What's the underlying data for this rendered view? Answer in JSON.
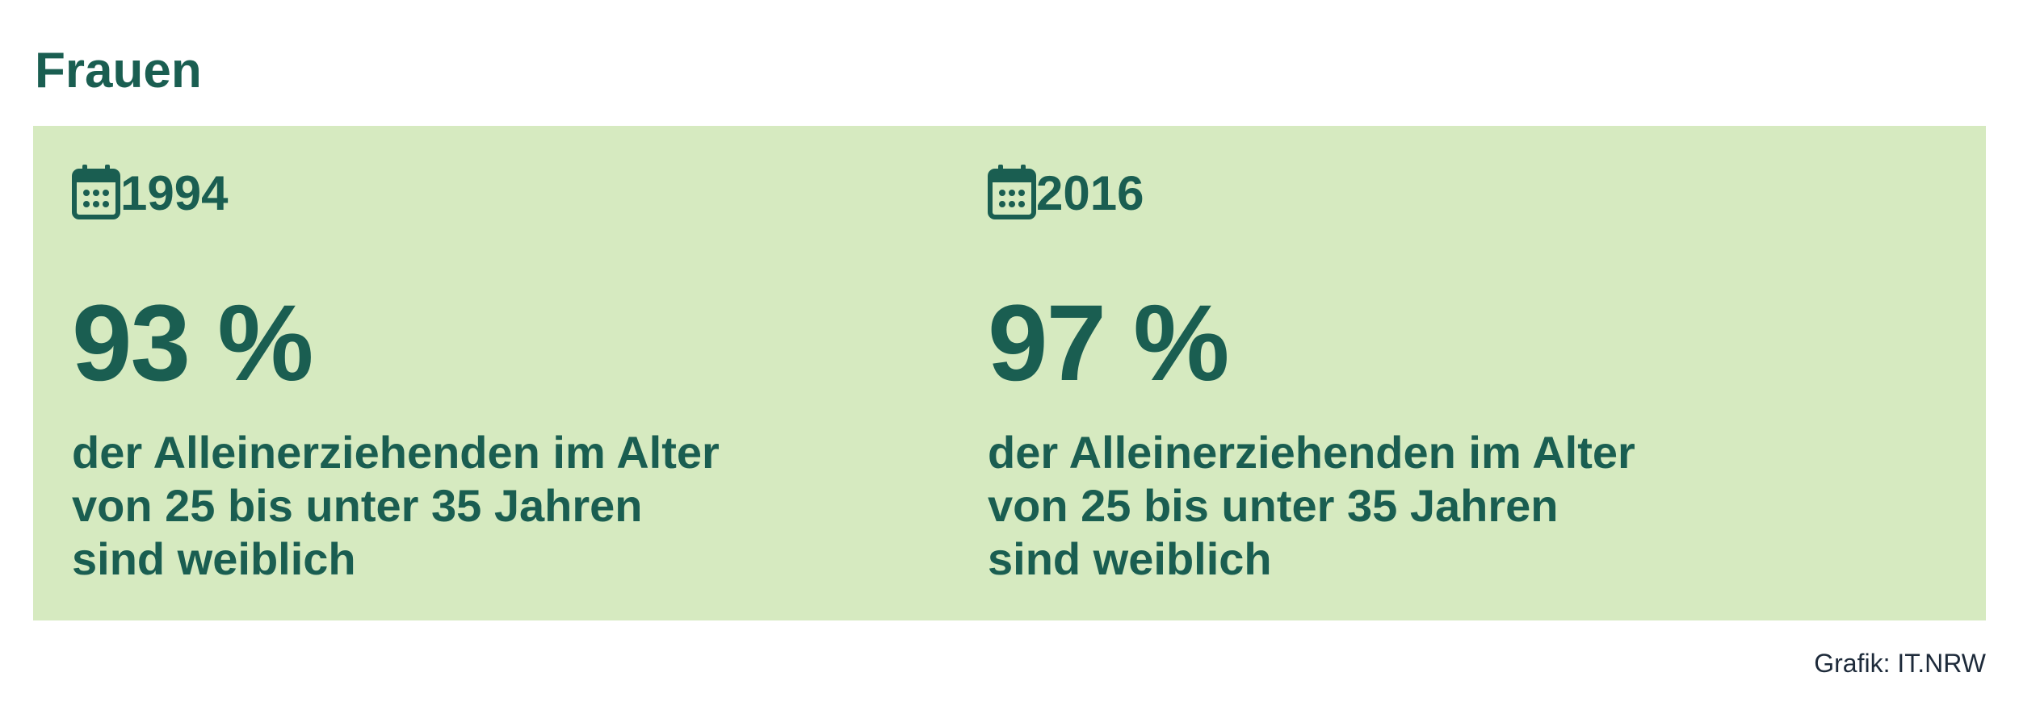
{
  "header": {
    "title": "Frauen"
  },
  "panels": [
    {
      "year": "1994",
      "value": "93 %",
      "description": [
        "der Alleinerziehenden im Alter",
        "von 25 bis unter 35 Jahren",
        "sind weiblich"
      ]
    },
    {
      "year": "2016",
      "value": "97 %",
      "description": [
        "der Alleinerziehenden im Alter",
        "von 25 bis unter 35 Jahren",
        "sind weiblich"
      ]
    }
  ],
  "footer": {
    "credit": "Grafik: IT.NRW"
  }
}
